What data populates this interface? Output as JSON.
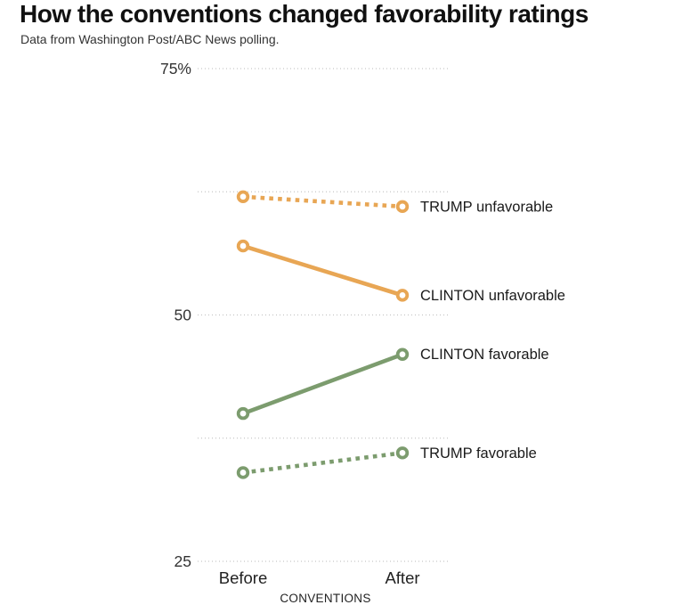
{
  "title": "How the conventions changed favorability ratings",
  "subtitle": "Data from Washington Post/ABC News polling.",
  "colors": {
    "orange": "#e8a654",
    "green": "#7c9c6e",
    "grid": "#c6c6c6",
    "tick_text": "#333333",
    "axis_text": "#222222",
    "label_text": "#1a1a1a",
    "background": "#ffffff"
  },
  "chart_data": {
    "type": "line",
    "subtype": "slope-graph",
    "title": "How the conventions changed favorability ratings",
    "subtitle": "Data from Washington Post/ABC News polling.",
    "categories": [
      "Before",
      "After"
    ],
    "x_axis_label": "CONVENTIONS",
    "ylim": [
      25,
      75
    ],
    "grid": "horizontal dotted",
    "legend_position": "labels right of last point",
    "y_ticks": [
      {
        "value": 75,
        "label": "75%"
      },
      {
        "value": 62.5,
        "label": ""
      },
      {
        "value": 50,
        "label": "50"
      },
      {
        "value": 37.5,
        "label": ""
      },
      {
        "value": 25,
        "label": "25"
      }
    ],
    "series": [
      {
        "name": "TRUMP unfavorable",
        "values": [
          62,
          61
        ],
        "color": "orange",
        "style": "dotted",
        "marker": "open-circle"
      },
      {
        "name": "CLINTON unfavorable",
        "values": [
          57,
          52
        ],
        "color": "orange",
        "style": "solid",
        "marker": "open-circle"
      },
      {
        "name": "CLINTON favorable",
        "values": [
          40,
          46
        ],
        "color": "green",
        "style": "solid",
        "marker": "open-circle"
      },
      {
        "name": "TRUMP favorable",
        "values": [
          34,
          36
        ],
        "color": "green",
        "style": "dotted",
        "marker": "open-circle"
      }
    ]
  }
}
